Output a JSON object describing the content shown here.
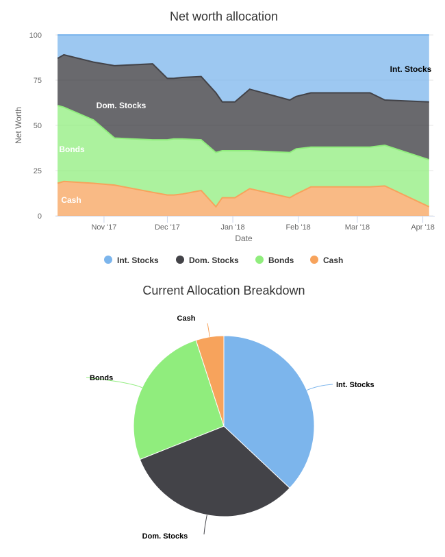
{
  "chart_data": [
    {
      "type": "area",
      "stacked": true,
      "title": "Net worth allocation",
      "xlabel": "Date",
      "ylabel": "Net Worth",
      "ylim": [
        0,
        100
      ],
      "yticks": [
        "0",
        "25",
        "50",
        "75",
        "100"
      ],
      "x_tick_labels": [
        "Nov '17",
        "Dec '17",
        "Jan '18",
        "Feb '18",
        "Mar '18",
        "Apr '18"
      ],
      "x_tick_dates": [
        "2017-11-01",
        "2017-12-01",
        "2018-01-01",
        "2018-02-01",
        "2018-03-01",
        "2018-04-01"
      ],
      "x_range": [
        "2017-10-09",
        "2018-04-06"
      ],
      "x": [
        "2017-10-10",
        "2017-10-13",
        "2017-10-27",
        "2017-11-06",
        "2017-11-24",
        "2017-12-01",
        "2017-12-04",
        "2017-12-08",
        "2017-12-17",
        "2017-12-24",
        "2017-12-27",
        "2018-01-02",
        "2018-01-09",
        "2018-01-28",
        "2018-01-31",
        "2018-02-07",
        "2018-02-14",
        "2018-02-21",
        "2018-02-28",
        "2018-03-07",
        "2018-03-14",
        "2018-04-04"
      ],
      "series": [
        {
          "name": "Cash",
          "color": "#f7a35c",
          "values": [
            18,
            19,
            18,
            17,
            13,
            11.5,
            11.5,
            12,
            14,
            5,
            10,
            10,
            15,
            10,
            12,
            16,
            16,
            16,
            16,
            16,
            16.5,
            5
          ]
        },
        {
          "name": "Bonds",
          "color": "#90ed7d",
          "values": [
            43,
            41,
            35,
            26,
            29,
            30.5,
            31,
            30.5,
            28,
            30,
            26,
            26,
            21,
            25,
            25,
            22,
            22,
            22,
            22,
            22,
            22.5,
            26
          ]
        },
        {
          "name": "Dom. Stocks",
          "color": "#434348",
          "values": [
            26,
            29,
            32,
            40,
            42,
            34,
            33.5,
            34,
            35,
            33,
            27,
            27,
            34,
            29,
            29,
            30,
            30,
            30,
            30,
            30,
            25,
            32
          ]
        },
        {
          "name": "Int. Stocks",
          "color": "#7cb5ec",
          "values": [
            13,
            11,
            15,
            17,
            16,
            24,
            24,
            23.5,
            23,
            32,
            37,
            37,
            30,
            36,
            34,
            32,
            32,
            32,
            32,
            32,
            36,
            37
          ]
        }
      ],
      "area_labels": [
        "Int. Stocks",
        "Dom. Stocks",
        "Bonds",
        "Cash"
      ],
      "legend": {
        "position": "bottom",
        "items": [
          {
            "label": "Int. Stocks",
            "color": "#7cb5ec"
          },
          {
            "label": "Dom. Stocks",
            "color": "#434348"
          },
          {
            "label": "Bonds",
            "color": "#90ed7d"
          },
          {
            "label": "Cash",
            "color": "#f7a35c"
          }
        ]
      },
      "grid": true
    },
    {
      "type": "pie",
      "title": "Current Allocation Breakdown",
      "slices": [
        {
          "label": "Int. Stocks",
          "value": 37,
          "color": "#7cb5ec"
        },
        {
          "label": "Dom. Stocks",
          "value": 32,
          "color": "#434348"
        },
        {
          "label": "Bonds",
          "value": 26,
          "color": "#90ed7d"
        },
        {
          "label": "Cash",
          "value": 5,
          "color": "#f7a35c"
        }
      ]
    }
  ]
}
